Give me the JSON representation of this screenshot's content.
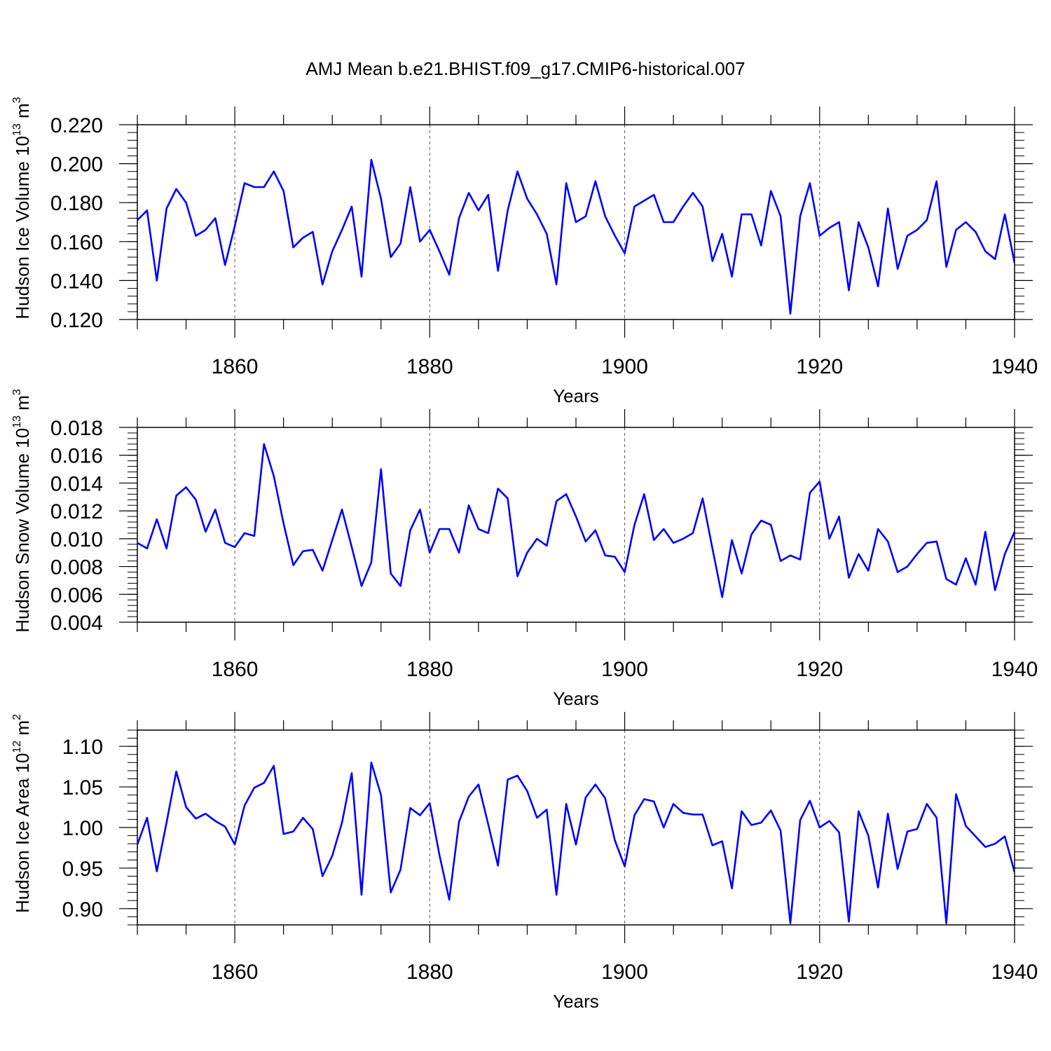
{
  "page_title": "AMJ Mean b.e21.BHIST.f09_g17.CMIP6-historical.007",
  "colors": {
    "line": "#0000ff",
    "axis": "#000000",
    "grid": "#555555"
  },
  "chart_data": [
    {
      "type": "line",
      "title": "AMJ Mean b.e21.BHIST.f09_g17.CMIP6-historical.007",
      "xlabel": "Years",
      "ylabel": {
        "text": "Hudson Ice Volume 10",
        "exponent": "13",
        "unit": " m",
        "unit_exponent": "3"
      },
      "xlim": [
        1850,
        1940
      ],
      "ylim": [
        0.12,
        0.22
      ],
      "x_ticks": [
        1860,
        1880,
        1900,
        1920,
        1940
      ],
      "y_ticks": [
        "0.120",
        "0.140",
        "0.160",
        "0.180",
        "0.200",
        "0.220"
      ],
      "grid_x": [
        1860,
        1880,
        1900,
        1920
      ],
      "x_start": 1850,
      "series": [
        {
          "name": "Hudson Ice Volume",
          "values": [
            0.171,
            0.176,
            0.14,
            0.177,
            0.187,
            0.18,
            0.163,
            0.166,
            0.172,
            0.148,
            0.168,
            0.19,
            0.188,
            0.188,
            0.196,
            0.186,
            0.157,
            0.162,
            0.165,
            0.138,
            0.155,
            0.166,
            0.178,
            0.142,
            0.202,
            0.182,
            0.152,
            0.159,
            0.188,
            0.16,
            0.166,
            0.155,
            0.143,
            0.172,
            0.185,
            0.176,
            0.184,
            0.145,
            0.176,
            0.196,
            0.182,
            0.174,
            0.164,
            0.138,
            0.19,
            0.17,
            0.173,
            0.191,
            0.173,
            0.163,
            0.154,
            0.178,
            0.181,
            0.184,
            0.17,
            0.17,
            0.178,
            0.185,
            0.178,
            0.15,
            0.164,
            0.142,
            0.174,
            0.174,
            0.158,
            0.186,
            0.173,
            0.123,
            0.173,
            0.19,
            0.163,
            0.167,
            0.17,
            0.135,
            0.17,
            0.157,
            0.137,
            0.177,
            0.146,
            0.163,
            0.166,
            0.171,
            0.191,
            0.147,
            0.166,
            0.17,
            0.165,
            0.155,
            0.151,
            0.174,
            0.149
          ]
        }
      ]
    },
    {
      "type": "line",
      "title": "",
      "xlabel": "Years",
      "ylabel": {
        "text": "Hudson Snow Volume 10",
        "exponent": "13",
        "unit": " m",
        "unit_exponent": "3"
      },
      "xlim": [
        1850,
        1940
      ],
      "ylim": [
        0.004,
        0.018
      ],
      "x_ticks": [
        1860,
        1880,
        1900,
        1920,
        1940
      ],
      "y_ticks": [
        "0.004",
        "0.006",
        "0.008",
        "0.010",
        "0.012",
        "0.014",
        "0.016",
        "0.018"
      ],
      "grid_x": [
        1860,
        1880,
        1900,
        1920
      ],
      "x_start": 1850,
      "series": [
        {
          "name": "Hudson Snow Volume",
          "values": [
            0.0097,
            0.0093,
            0.0114,
            0.0093,
            0.0131,
            0.0137,
            0.0128,
            0.0105,
            0.0121,
            0.0097,
            0.0094,
            0.0104,
            0.0102,
            0.0168,
            0.0145,
            0.0111,
            0.0081,
            0.0091,
            0.0092,
            0.0077,
            0.0099,
            0.0121,
            0.0094,
            0.0066,
            0.0083,
            0.015,
            0.0075,
            0.0066,
            0.0106,
            0.0121,
            0.009,
            0.0107,
            0.0107,
            0.009,
            0.0124,
            0.0107,
            0.0104,
            0.0136,
            0.0129,
            0.0073,
            0.009,
            0.01,
            0.0095,
            0.0127,
            0.0132,
            0.0116,
            0.0098,
            0.0106,
            0.0088,
            0.0087,
            0.0076,
            0.011,
            0.0132,
            0.0099,
            0.0107,
            0.0097,
            0.01,
            0.0104,
            0.0129,
            0.0093,
            0.0058,
            0.0099,
            0.0075,
            0.0103,
            0.0113,
            0.011,
            0.0084,
            0.0088,
            0.0085,
            0.0133,
            0.0141,
            0.01,
            0.0116,
            0.0072,
            0.0089,
            0.0077,
            0.0107,
            0.0098,
            0.0076,
            0.008,
            0.0089,
            0.0097,
            0.0098,
            0.0071,
            0.0067,
            0.0086,
            0.0067,
            0.0105,
            0.0063,
            0.0089,
            0.0105
          ]
        }
      ]
    },
    {
      "type": "line",
      "title": "",
      "xlabel": "Years",
      "ylabel": {
        "text": "Hudson Ice Area 10",
        "exponent": "12",
        "unit": " m",
        "unit_exponent": "2"
      },
      "xlim": [
        1850,
        1940
      ],
      "ylim": [
        0.88,
        1.12
      ],
      "x_ticks": [
        1860,
        1880,
        1900,
        1920,
        1940
      ],
      "y_ticks": [
        "0.90",
        "0.95",
        "1.00",
        "1.05",
        "1.10"
      ],
      "grid_x": [
        1860,
        1880,
        1900,
        1920
      ],
      "x_start": 1850,
      "series": [
        {
          "name": "Hudson Ice Area",
          "values": [
            0.979,
            1.012,
            0.946,
            1.006,
            1.069,
            1.025,
            1.011,
            1.017,
            1.008,
            1.001,
            0.979,
            1.027,
            1.049,
            1.055,
            1.076,
            0.992,
            0.995,
            1.012,
            0.998,
            0.94,
            0.965,
            1.006,
            1.067,
            0.917,
            1.08,
            1.04,
            0.92,
            0.948,
            1.024,
            1.015,
            1.03,
            0.966,
            0.911,
            1.007,
            1.038,
            1.053,
            1.004,
            0.953,
            1.059,
            1.064,
            1.045,
            1.012,
            1.022,
            0.917,
            1.029,
            0.979,
            1.037,
            1.053,
            1.036,
            0.984,
            0.952,
            1.015,
            1.035,
            1.032,
            1.0,
            1.029,
            1.018,
            1.016,
            1.016,
            0.978,
            0.983,
            0.925,
            1.02,
            1.003,
            1.006,
            1.021,
            0.996,
            0.882,
            1.009,
            1.033,
            1.0,
            1.008,
            0.994,
            0.884,
            1.02,
            0.99,
            0.926,
            1.017,
            0.949,
            0.995,
            0.998,
            1.029,
            1.012,
            0.882,
            1.041,
            1.002,
            0.989,
            0.976,
            0.98,
            0.989,
            0.945
          ]
        }
      ]
    }
  ]
}
